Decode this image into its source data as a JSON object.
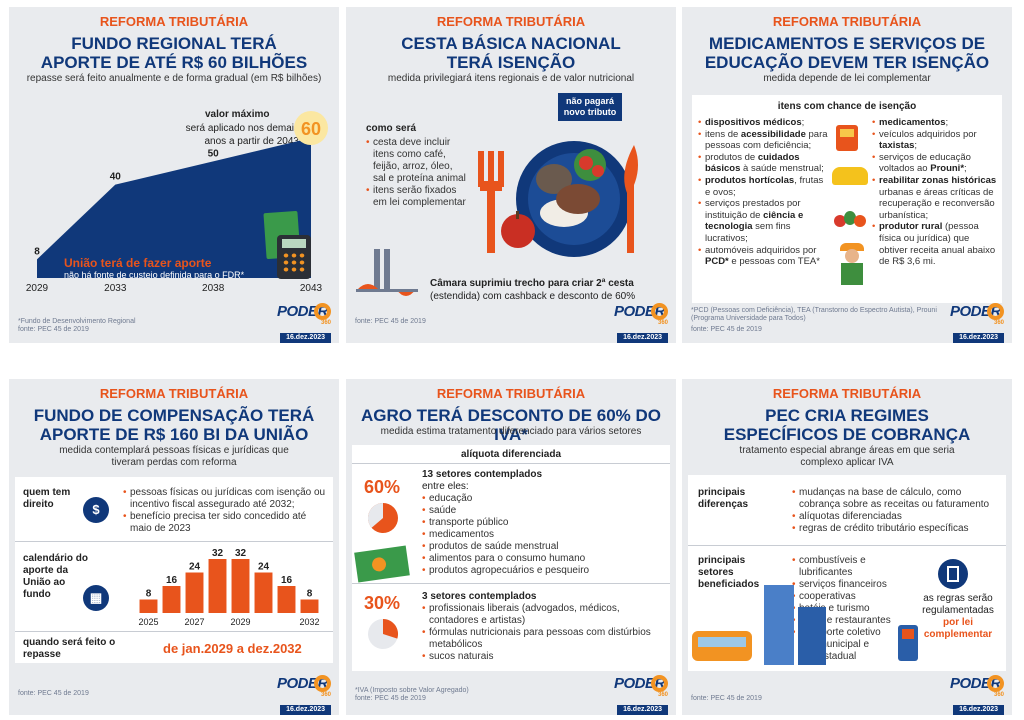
{
  "common": {
    "kicker": "REFORMA TRIBUTÁRIA",
    "brand": "PODER",
    "brand_num": "360",
    "date": "16.dez.2023"
  },
  "card1": {
    "title1": "FUNDO REGIONAL TERÁ",
    "title2": "APORTE DE ATÉ R$ 60 BILHÕES",
    "sub": "repasse será feito anualmente e de forma gradual (em R$ bilhões)",
    "max_label": "valor máximo",
    "max_text1": "será aplicado nos demais",
    "max_text2": "anos a partir de 2043",
    "orange1": "União terá de fazer aporte",
    "orange2": "não há fonte de custeio definida para o FDR*",
    "source": "*Fundo de Desenvolvimento Regional",
    "source2": "fonte: PEC 45 de 2019"
  },
  "card2": {
    "title1": "CESTA BÁSICA NACIONAL",
    "title2": "TERÁ ISENÇÃO",
    "sub": "medida privilegiará itens regionais e de valor nutricional",
    "badge1": "não pagará",
    "badge2": "novo tributo",
    "como": "como será",
    "b1": "cesta deve incluir itens como café, feijão, arroz, óleo, sal e proteína animal",
    "b2": "itens serão fixados em lei complementar",
    "camara_bold": "Câmara suprimiu trecho para criar 2ª cesta",
    "camara_rest": "(estendida) com cashback e desconto de 60%",
    "source": "fonte: PEC 45 de 2019"
  },
  "card3": {
    "title1": "MEDICAMENTOS E SERVIÇOS DE",
    "title2": "EDUCAÇÃO DEVEM TER ISENÇÃO",
    "sub": "medida depende de lei complementar",
    "head": "itens com chance de isenção",
    "left": [
      {
        "b": "dispositivos médicos",
        "t": ";"
      },
      {
        "b": "",
        "t": "itens de ",
        "b2": "acessibilidade",
        "t2": " para pessoas com deficiência;"
      },
      {
        "b": "",
        "t": "produtos de ",
        "b2": "cuidados básicos",
        "t2": " à saúde menstrual;"
      },
      {
        "b": "produtos hortícolas",
        "t": ", frutas e ovos;"
      },
      {
        "b": "",
        "t": "serviços prestados por instituição de ",
        "b2": "ciência e tecnologia",
        "t2": " sem fins lucrativos;"
      },
      {
        "b": "",
        "t": "automóveis adquiridos por ",
        "b2": "PCD*",
        "t2": " e pessoas com TEA*"
      }
    ],
    "right": [
      {
        "b": "medicamentos",
        "t": ";"
      },
      {
        "b": "",
        "t": "veículos adquiridos por ",
        "b2": "taxistas",
        "t2": ";"
      },
      {
        "b": "",
        "t": "serviços de educação voltados ao ",
        "b2": "Prouni*",
        "t2": ";"
      },
      {
        "b": "reabilitar zonas históricas",
        "t": " urbanas e áreas críticas de recuperação e reconversão urbanística;"
      },
      {
        "b": "produtor rural",
        "t": " (pessoa física ou jurídica) que obtiver receita anual abaixo de R$ 3,6 mi."
      }
    ],
    "source": "*PCD (Pessoas com Deficiência), TEA (Transtorno do Espectro Autista), Prouni (Programa Universidade para Todos)",
    "source2": "fonte: PEC 45 de 2019"
  },
  "card4": {
    "title1": "FUNDO DE COMPENSAÇÃO TERÁ",
    "title2": "APORTE DE R$ 160 BI DA UNIÃO",
    "sub1": "medida contemplará pessoas físicas e jurídicas que",
    "sub2": "tiveram perdas com reforma",
    "row1_label": "quem tem direito",
    "row1_b1": "pessoas físicas ou jurídicas com isenção ou incentivo fiscal assegurado até 2032;",
    "row1_b2": "benefício precisa ter sido concedido até maio de 2023",
    "row2_label": "calendário do aporte da União ao fundo",
    "row3_label": "quando será feito o repasse",
    "row3_value": "de jan.2029 a dez.2032",
    "source": "fonte: PEC 45 de 2019"
  },
  "card5": {
    "title": "AGRO TERÁ DESCONTO DE 60% DO IVA*",
    "sub": "medida estima tratamento diferenciado para vários setores",
    "head": "alíquota diferenciada",
    "pct1": "60%",
    "h1": "13 setores contemplados",
    "h1b": "entre eles:",
    "list1": [
      "educação",
      "saúde",
      "transporte público",
      "medicamentos",
      "produtos de saúde menstrual",
      "alimentos para o consumo humano",
      "produtos agropecuários e pesqueiro"
    ],
    "pct2": "30%",
    "h2": "3 setores contemplados",
    "list2": [
      "profissionais liberais (advogados, médicos, contadores e artistas)",
      "fórmulas nutricionais para pessoas com distúrbios metabólicos",
      "sucos naturais"
    ],
    "source": "*IVA (Imposto sobre Valor Agregado)",
    "source2": "fonte: PEC 45 de 2019"
  },
  "card6": {
    "title1": "PEC CRIA REGIMES",
    "title2": "ESPECÍFICOS DE COBRANÇA",
    "sub1": "tratamento especial abrange áreas em que seria",
    "sub2": "complexo aplicar IVA",
    "row1_label": "principais diferenças",
    "row1_list": [
      "mudanças na base de cálculo, como cobrança sobre as receitas ou faturamento",
      "alíquotas diferenciadas",
      "regras de crédito tributário específicas"
    ],
    "row2_label": "principais setores beneficiados",
    "row2_list": [
      "combustíveis e lubrificantes",
      "serviços financeiros",
      "cooperativas",
      "hotéis e turismo",
      "bares e restaurantes",
      "transporte coletivo intermunicipal e interestadual"
    ],
    "note1": "as regras serão regulamentadas",
    "note2": "por lei complementar",
    "source": "fonte: PEC 45 de 2019"
  },
  "chart_data": [
    {
      "type": "area",
      "x": [
        2029,
        2033,
        2038,
        2043
      ],
      "values": [
        8,
        40,
        50,
        60
      ],
      "title": "FUNDO REGIONAL TERÁ APORTE DE ATÉ R$ 60 BILHÕES",
      "subtitle": "repasse será feito anualmente e de forma gradual (em R$ bilhões)",
      "ylim": [
        0,
        60
      ],
      "grid": false
    },
    {
      "type": "bar",
      "categories": [
        "2025",
        "2026",
        "2027",
        "2028",
        "2029",
        "2030",
        "2031",
        "2032"
      ],
      "tick_labels": [
        "2025",
        "2027",
        "2029",
        "2032"
      ],
      "values": [
        8,
        16,
        24,
        32,
        32,
        24,
        16,
        8
      ],
      "title": "calendário do aporte da União ao fundo",
      "ylim": [
        0,
        32
      ],
      "grid": false
    }
  ],
  "colors": {
    "navy": "#10387a",
    "orange": "#e8541c",
    "accent": "#f29322"
  }
}
